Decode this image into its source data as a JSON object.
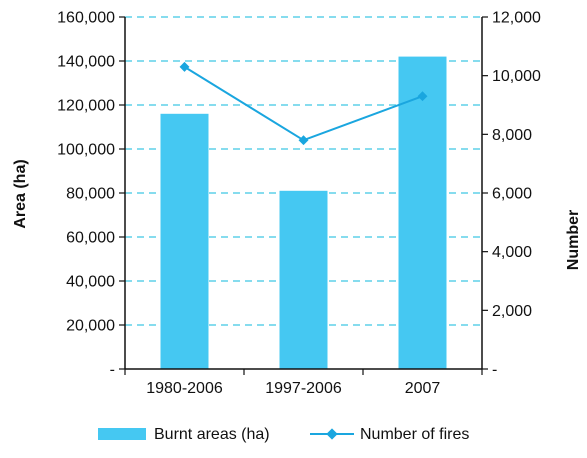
{
  "chart_data": {
    "type": "bar",
    "categories": [
      "1980-2006",
      "1997-2006",
      "2007"
    ],
    "series": [
      {
        "name": "Burnt areas (ha)",
        "type": "bar",
        "axis": "left",
        "values": [
          116000,
          81000,
          142000
        ],
        "color": "#45c8f2"
      },
      {
        "name": "Number of fires",
        "type": "line",
        "axis": "right",
        "values": [
          10300,
          7800,
          9300
        ],
        "color": "#1aa6df"
      }
    ],
    "ylabel": "Area (ha)",
    "y2label": "Number",
    "ylim": [
      0,
      160000
    ],
    "y2lim": [
      0,
      12000
    ],
    "yticks": [
      "-",
      "20,000",
      "40,000",
      "60,000",
      "80,000",
      "100,000",
      "120,000",
      "140,000",
      "160,000"
    ],
    "y2ticks": [
      "-",
      "2,000",
      "4,000",
      "6,000",
      "8,000",
      "10,000",
      "12,000"
    ],
    "grid": true,
    "grid_color": "#5fd0e8",
    "legend_position": "bottom"
  }
}
